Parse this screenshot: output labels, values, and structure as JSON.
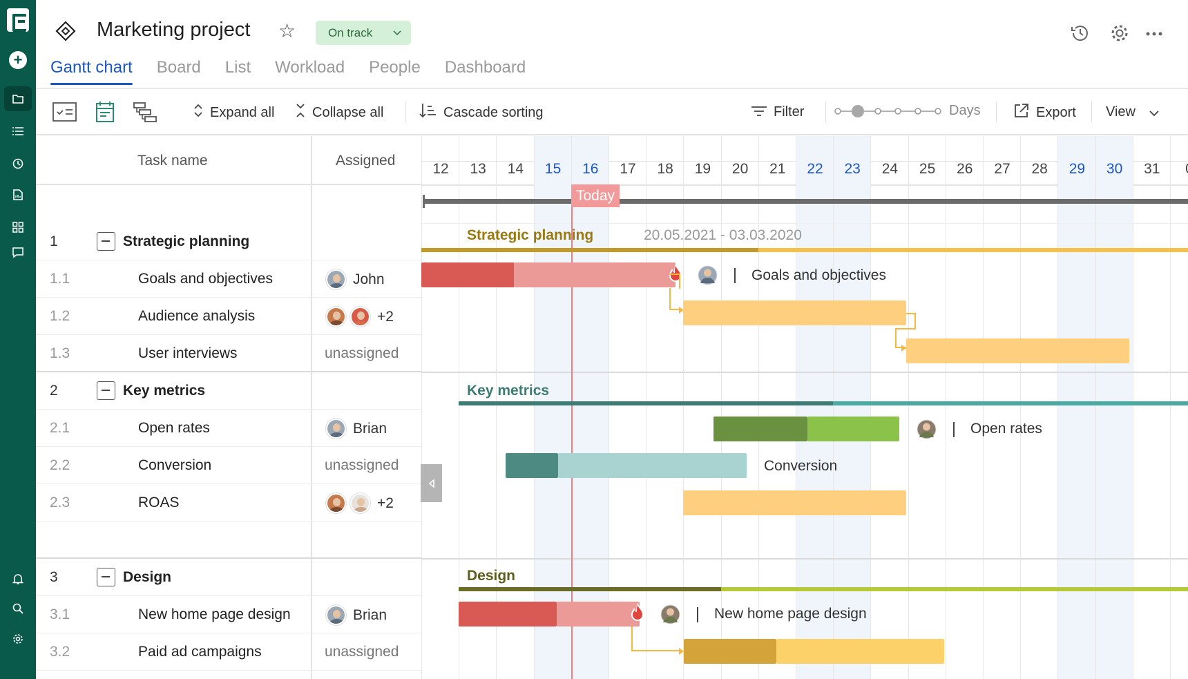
{
  "app": {
    "brand_color": "#0a5a4c",
    "accent": "#1a56c4"
  },
  "header": {
    "title": "Marketing project",
    "status": "On track"
  },
  "tabs": [
    {
      "label": "Gantt chart",
      "active": true
    },
    {
      "label": "Board"
    },
    {
      "label": "List"
    },
    {
      "label": "Workload"
    },
    {
      "label": "People"
    },
    {
      "label": "Dashboard"
    }
  ],
  "toolbar": {
    "expand_all": "Expand all",
    "collapse_all": "Collapse all",
    "cascade_sorting": "Cascade sorting",
    "filter": "Filter",
    "zoom_unit": "Days",
    "export": "Export",
    "view": "View"
  },
  "grid": {
    "col_task": "Task name",
    "col_assigned": "Assigned",
    "rows": [
      {
        "num": "1",
        "name": "Strategic planning",
        "group": true
      },
      {
        "num": "1.1",
        "name": "Goals and objectives",
        "assigned": "John"
      },
      {
        "num": "1.2",
        "name": "Audience analysis",
        "assigned": "+2"
      },
      {
        "num": "1.3",
        "name": "User interviews",
        "assigned": "unassigned"
      },
      {
        "num": "2",
        "name": "Key metrics",
        "group": true
      },
      {
        "num": "2.1",
        "name": "Open rates",
        "assigned": "Brian"
      },
      {
        "num": "2.2",
        "name": "Conversion",
        "assigned": "unassigned"
      },
      {
        "num": "2.3",
        "name": "ROAS",
        "assigned": "+2"
      },
      {
        "num": "3",
        "name": "Design",
        "group": true
      },
      {
        "num": "3.1",
        "name": "New home page design",
        "assigned": "Brian"
      },
      {
        "num": "3.2",
        "name": "Paid ad campaigns",
        "assigned": "unassigned"
      }
    ]
  },
  "timeline": {
    "days": [
      "12",
      "13",
      "14",
      "15",
      "16",
      "17",
      "18",
      "19",
      "20",
      "21",
      "22",
      "23",
      "24",
      "25",
      "26",
      "27",
      "28",
      "29",
      "30",
      "31",
      "0"
    ],
    "weekend_days": [
      "15",
      "16",
      "22",
      "23",
      "29",
      "30"
    ],
    "today_label": "Today",
    "groups": {
      "strategic": {
        "title": "Strategic planning",
        "dates": "20.05.2021 - 03.03.2020",
        "color": "#f5c14a"
      },
      "key_metrics": {
        "title": "Key metrics",
        "color": "#4aa9a2"
      },
      "design": {
        "title": "Design",
        "color": "#b5c93a"
      }
    },
    "labels": {
      "goals": "Goals and objectives",
      "open_rates": "Open rates",
      "conversion": "Conversion",
      "home_page": "New home page design"
    }
  }
}
